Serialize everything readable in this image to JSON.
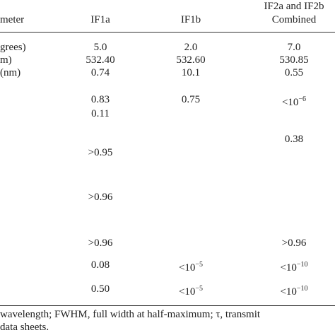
{
  "table": {
    "header": [
      "meter",
      "IF1a",
      "IF1b",
      [
        "IF2a and IF2b",
        "Combined"
      ]
    ],
    "rows": [
      [
        {
          "text": "grees)"
        },
        {
          "text": "5.0"
        },
        {
          "text": "2.0"
        },
        {
          "text": "7.0"
        }
      ],
      [
        {
          "text": "m)"
        },
        {
          "text": "532.40"
        },
        {
          "text": "532.60"
        },
        {
          "text": "530.85"
        }
      ],
      [
        {
          "text": "(nm)"
        },
        {
          "text": "0.74"
        },
        {
          "text": "10.1"
        },
        {
          "text": "0.55"
        }
      ],
      [
        null,
        {
          "text": "0.83"
        },
        {
          "text": "0.75"
        },
        {
          "text": "<10",
          "sup": "−6"
        }
      ],
      [
        null,
        {
          "text": "0.11"
        },
        null,
        null
      ],
      [
        null,
        null,
        null,
        {
          "text": "0.38"
        }
      ],
      [
        null,
        {
          "text": ">0.95"
        },
        null,
        null
      ],
      [
        null,
        {
          "text": ">0.96"
        },
        null,
        null
      ],
      [
        null,
        {
          "text": ">0.96"
        },
        null,
        {
          "text": ">0.96"
        }
      ],
      [
        null,
        {
          "text": "0.08"
        },
        {
          "text": "<10",
          "sup": "−5"
        },
        {
          "text": "<10",
          "sup": "−10"
        }
      ],
      [
        null,
        {
          "text": "0.50"
        },
        {
          "text": "<10",
          "sup": "−5"
        },
        {
          "text": "<10",
          "sup": "−10"
        }
      ]
    ],
    "footnote": [
      "wavelength; FWHM, full width at half-maximum; τ, transmit",
      "data sheets."
    ]
  }
}
